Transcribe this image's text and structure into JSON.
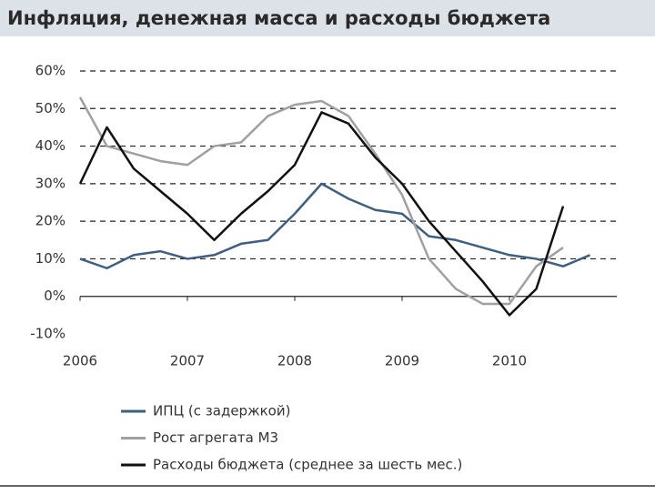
{
  "chart_data": {
    "type": "line",
    "title": "Инфляция, денежная масса и расходы бюджета",
    "x": [
      2006,
      2006.25,
      2006.5,
      2006.75,
      2007,
      2007.25,
      2007.5,
      2007.75,
      2008,
      2008.25,
      2008.5,
      2008.75,
      2009,
      2009.25,
      2009.5,
      2009.75,
      2010,
      2010.25,
      2010.5,
      2010.75
    ],
    "series": [
      {
        "name": "ИПЦ (с задержкой)",
        "color": "#3d5f80",
        "values": [
          10,
          7.5,
          11,
          12,
          10,
          11,
          14,
          15,
          22,
          30,
          26,
          23,
          22,
          16,
          15,
          13,
          11,
          10,
          8,
          11
        ]
      },
      {
        "name": "Рост агрегата М3",
        "color": "#a0a0a0",
        "values": [
          53,
          40,
          38,
          36,
          35,
          40,
          41,
          48,
          51,
          52,
          48,
          38,
          27,
          10,
          2,
          -2,
          -2,
          8,
          13,
          null
        ]
      },
      {
        "name": "Расходы бюджета (среднее за шесть мес.)",
        "color": "#111111",
        "values": [
          30,
          45,
          34,
          28,
          22,
          15,
          22,
          28,
          35,
          49,
          46,
          37,
          30,
          20,
          12,
          4,
          -5,
          2,
          24,
          null
        ]
      }
    ],
    "xlim": [
      2006,
      2011
    ],
    "xticks": [
      2006,
      2007,
      2008,
      2009,
      2010
    ],
    "ylim": [
      -10,
      60
    ],
    "yticks": [
      {
        "value": -10,
        "label": "-10%"
      },
      {
        "value": 0,
        "label": "0%"
      },
      {
        "value": 10,
        "label": "10%"
      },
      {
        "value": 20,
        "label": "20%"
      },
      {
        "value": 30,
        "label": "30%"
      },
      {
        "value": 40,
        "label": "40%"
      },
      {
        "value": 50,
        "label": "50%"
      },
      {
        "value": 60,
        "label": "60%"
      }
    ],
    "grid": true
  }
}
